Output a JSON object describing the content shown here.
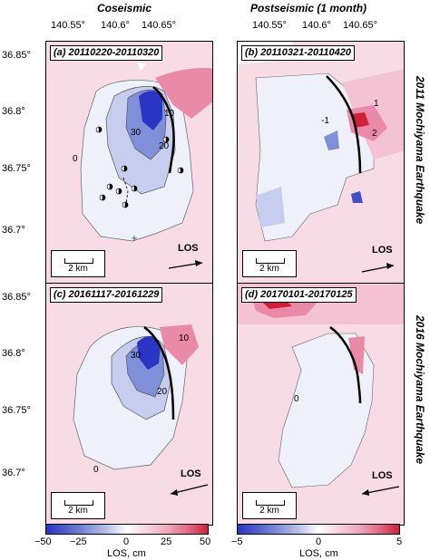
{
  "headers": {
    "left": "Coseismic",
    "right": "Postseismic (1 month)"
  },
  "lon_ticks": [
    "140.55°",
    "140.6°",
    "140.65°"
  ],
  "lat_ticks": [
    "36.85°",
    "36.8°",
    "36.75°",
    "36.7°"
  ],
  "rows": [
    "2011 Mochiyama Earthquake",
    "2016 Mochiyama Earthquake"
  ],
  "panels": [
    {
      "label": "(a) 20110220-20110320",
      "contours": [
        "10",
        "30",
        "20",
        "0"
      ]
    },
    {
      "label": "(b) 20110321-20110420",
      "contours": [
        "-1",
        "1",
        "2"
      ]
    },
    {
      "label": "(c) 20161117-20161229",
      "contours": [
        "10",
        "30",
        "20",
        "0"
      ]
    },
    {
      "label": "(d) 20170101-20170125",
      "contours": [
        "0"
      ]
    }
  ],
  "scale_bar": "2 km",
  "los_label": "LOS",
  "colorbars": [
    {
      "ticks": [
        "−50",
        "−25",
        "0",
        "25",
        "50"
      ],
      "title": "LOS, cm"
    },
    {
      "ticks": [
        "−5",
        "0",
        "5"
      ],
      "title": "LOS, cm"
    }
  ],
  "colors": {
    "blue_dark": "#2b35c4",
    "blue_mid": "#7f8fd8",
    "blue_light": "#c6cdee",
    "background": "#f7dbe5",
    "red_dark": "#d2203a",
    "pink": "#e98ba8"
  }
}
